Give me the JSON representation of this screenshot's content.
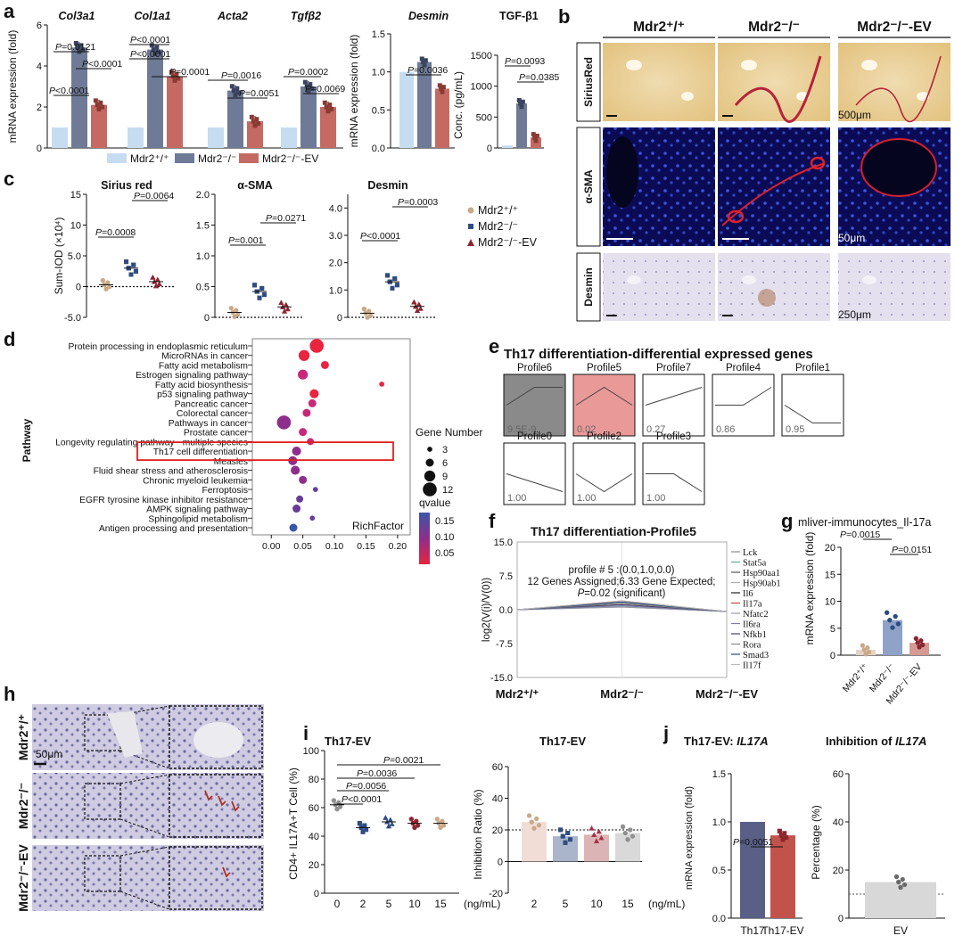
{
  "panel_letters": [
    "a",
    "b",
    "c",
    "d",
    "e",
    "f",
    "g",
    "h",
    "i",
    "j"
  ],
  "legends": {
    "a": [
      "Mdr2+/+",
      "Mdr2-/-",
      "Mdr2-/--EV"
    ],
    "c": [
      "Mdr2+/+",
      "Mdr2-/-",
      "Mdr2-/--EV"
    ]
  },
  "colors": {
    "wt": "#c6dcf1",
    "ko": "#6e7a96",
    "ev": "#c56a63",
    "c_wt": "#c9a988",
    "c_ko": "#2f4d82",
    "c_ev": "#8b2630",
    "q_high": "#e8243f",
    "q_mid": "#8e2e8c",
    "q_low": "#3a56a8",
    "profile_dark": "#8a8a8a",
    "profile_pink": "#e99a98",
    "highlight": "#e02020"
  },
  "panel_b": {
    "columns": [
      "Mdr2+/+",
      "Mdr2-/-",
      "Mdr2-/--EV"
    ],
    "rows": [
      "SiriusRed",
      "α-SMA",
      "Desmin"
    ],
    "scales": [
      "500μm",
      "50μm",
      "250μm"
    ]
  },
  "panel_e": {
    "title": "Th17 differentiation-differential expressed genes",
    "profiles": [
      {
        "name": "Profile6",
        "p": "9.5E-9",
        "trend": [
          0,
          1,
          1
        ]
      },
      {
        "name": "Profile5",
        "p": "0.02",
        "trend": [
          0,
          1,
          0
        ]
      },
      {
        "name": "Profile7",
        "p": "0.27",
        "trend": [
          0,
          0.5,
          1
        ]
      },
      {
        "name": "Profile4",
        "p": "0.86",
        "trend": [
          0,
          0,
          1
        ]
      },
      {
        "name": "Profile1",
        "p": "0.95",
        "trend": [
          0,
          -1,
          -1
        ]
      },
      {
        "name": "Profile0",
        "p": "1.00",
        "trend": [
          0,
          -0.5,
          -1
        ]
      },
      {
        "name": "Profile2",
        "p": "1.00",
        "trend": [
          0,
          -1,
          0
        ]
      },
      {
        "name": "Profile3",
        "p": "1.00",
        "trend": [
          0,
          0,
          -1
        ]
      }
    ]
  },
  "panel_f": {
    "genes": [
      "Lck",
      "Stat5a",
      "Hsp90aa1",
      "Hsp90ab1",
      "Il6",
      "Il17a",
      "Nfatc2",
      "Il6ra",
      "Nfkb1",
      "Rora",
      "Smad3",
      "Il17f"
    ]
  },
  "panel_h": {
    "rows": [
      "Mdr2+/+",
      "Mdr2-/-",
      "Mdr2-/--EV"
    ],
    "scale": "50μm"
  },
  "chart_data": [
    {
      "id": "a1",
      "type": "bar",
      "genes": [
        "Col3a1",
        "Col1a1",
        "Acta2",
        "Tgfβ2"
      ],
      "ylabel": "mRNA expression (fold)",
      "ylim": [
        0,
        6
      ],
      "yticks": [
        0,
        2,
        4,
        6
      ],
      "series": [
        {
          "name": "Mdr2+/+",
          "values": [
            1.0,
            1.0,
            1.0,
            1.0
          ]
        },
        {
          "name": "Mdr2-/-",
          "values": [
            4.9,
            4.8,
            2.8,
            3.0
          ]
        },
        {
          "name": "Mdr2-/--EV",
          "values": [
            2.1,
            3.5,
            1.3,
            2.0
          ]
        }
      ],
      "stats": [
        "P<0.0001",
        "P=0.0121",
        "P<0.0001",
        "P<0.0001",
        "P<0.0001",
        "P=0.0001",
        "P=0.0016",
        "P=0.0051",
        "P=0.0002",
        "P=0.0069"
      ]
    },
    {
      "id": "a2",
      "type": "bar",
      "title": "Desmin",
      "ylabel": "mRNA expression (fold)",
      "ylim": [
        0,
        1.5
      ],
      "yticks": [
        0.0,
        0.5,
        1.0,
        1.5
      ],
      "values": [
        1.0,
        1.13,
        0.78
      ],
      "stats": [
        "P=0.0036"
      ]
    },
    {
      "id": "a3",
      "type": "bar",
      "title": "TGF-β1",
      "ylabel": "Conc. (pg/mL)",
      "ylim": [
        0,
        1500
      ],
      "yticks": [
        0,
        500,
        1000,
        1500
      ],
      "values": [
        40,
        720,
        170
      ],
      "stats": [
        "P=0.0093",
        "P=0.0385"
      ]
    },
    {
      "id": "c1",
      "type": "scatter",
      "title": "Sirius red",
      "ylabel": "Sum-IOD (×10⁴)",
      "ylim": [
        -5,
        15
      ],
      "yticks": [
        "-5.0",
        "0",
        "5.0",
        "10",
        "15"
      ],
      "means": [
        0.3,
        3.0,
        0.8
      ],
      "stats": [
        "P=0.0008",
        "P=0.0064"
      ]
    },
    {
      "id": "c2",
      "type": "scatter",
      "title": "α-SMA",
      "ylim": [
        0,
        2
      ],
      "yticks": [
        "0",
        "0.5",
        "1.0",
        "1.5",
        "2.0"
      ],
      "means": [
        0.08,
        0.42,
        0.17
      ],
      "stats": [
        "P=0.001",
        "P=0.0271"
      ]
    },
    {
      "id": "c3",
      "type": "scatter",
      "title": "Desmin",
      "ylim": [
        0,
        5
      ],
      "yticks": [
        "0",
        "1.0",
        "2.0",
        "3.0",
        "4.0"
      ],
      "means": [
        0.15,
        1.3,
        0.4
      ],
      "stats": [
        "P<0.0001",
        "P=0.0003"
      ]
    },
    {
      "id": "d",
      "type": "scatter",
      "ylabel": "Pathway",
      "xlabel": "RichFactor",
      "xlim": [
        -0.03,
        0.22
      ],
      "xticks": [
        "0.00",
        "0.05",
        "0.10",
        "0.15",
        "0.20"
      ],
      "pathways": [
        {
          "name": "Protein processing in endoplasmic reticulum",
          "x": 0.072,
          "size": 12,
          "q": 0.04
        },
        {
          "name": "MicroRNAs in cancer",
          "x": 0.052,
          "size": 9,
          "q": 0.06
        },
        {
          "name": "Fatty acid metabolism",
          "x": 0.085,
          "size": 6,
          "q": 0.05
        },
        {
          "name": "Estrogen signaling pathway",
          "x": 0.05,
          "size": 8,
          "q": 0.07
        },
        {
          "name": "Fatty acid biosynthesis",
          "x": 0.175,
          "size": 3,
          "q": 0.05
        },
        {
          "name": "p53 signaling pathway",
          "x": 0.068,
          "size": 7,
          "q": 0.06
        },
        {
          "name": "Pancreatic cancer",
          "x": 0.065,
          "size": 6,
          "q": 0.07
        },
        {
          "name": "Colorectal cancer",
          "x": 0.056,
          "size": 6,
          "q": 0.07
        },
        {
          "name": "Pathways in cancer",
          "x": 0.02,
          "size": 12,
          "q": 0.09
        },
        {
          "name": "Prostate cancer",
          "x": 0.05,
          "size": 6,
          "q": 0.08
        },
        {
          "name": "Longevity regulating pathway - multiple species",
          "x": 0.062,
          "size": 5,
          "q": 0.08
        },
        {
          "name": "Th17 cell differentiation",
          "x": 0.04,
          "size": 7,
          "q": 0.09
        },
        {
          "name": "Measles",
          "x": 0.034,
          "size": 7,
          "q": 0.1
        },
        {
          "name": "Fluid shear stress and atherosclerosis",
          "x": 0.038,
          "size": 7,
          "q": 0.1
        },
        {
          "name": "Chronic myeloid leukemia",
          "x": 0.05,
          "size": 6,
          "q": 0.1
        },
        {
          "name": "Ferroptosis",
          "x": 0.07,
          "size": 3,
          "q": 0.12
        },
        {
          "name": "EGFR tyrosine kinase inhibitor resistance",
          "x": 0.045,
          "size": 5,
          "q": 0.11
        },
        {
          "name": "AMPK signaling pathway",
          "x": 0.04,
          "size": 6,
          "q": 0.12
        },
        {
          "name": "Sphingolipid metabolism",
          "x": 0.065,
          "size": 3,
          "q": 0.13
        },
        {
          "name": "Antigen processing and presentation",
          "x": 0.035,
          "size": 6,
          "q": 0.17
        }
      ],
      "size_legend_title": "Gene Number",
      "size_legend": [
        3,
        6,
        9,
        12
      ],
      "color_legend_title": "qvalue",
      "color_legend": [
        "0.15",
        "0.10",
        "0.05"
      ],
      "highlight": "Th17 cell differentiation"
    },
    {
      "id": "f",
      "type": "line",
      "title": "Th17 differentiation-Profile5",
      "ylabel": "log2(V(i)/V(0))",
      "ylim": [
        -15,
        15
      ],
      "yticks": [
        "-15.0",
        "-7.5",
        "0.0",
        "7.5",
        "15.0"
      ],
      "categories": [
        "Mdr2+/+",
        "Mdr2-/-",
        "Mdr2-/--EV"
      ],
      "annotation": [
        "profile # 5 :(0.0,1.0,0.0)",
        "12 Genes Assigned;6.33 Gene Expected;",
        "P=0.02 (significant)"
      ]
    },
    {
      "id": "g",
      "type": "bar",
      "title": "mliver-immunocytes_Il-17a",
      "ylabel": "mRNA expression (fold)",
      "ylim": [
        0,
        20
      ],
      "yticks": [
        0,
        5,
        10,
        15,
        20
      ],
      "categories": [
        "Mdr2+/+",
        "Mdr2-/-",
        "Mdr2-/--EV"
      ],
      "values": [
        1.0,
        6.5,
        2.3
      ],
      "stats": [
        "P=0.0015",
        "P=0.0151"
      ]
    },
    {
      "id": "i1",
      "type": "scatter",
      "title": "Th17-EV",
      "ylabel": "CD4+ IL17A+T Cell (%)",
      "xlabel": "(ng/mL)",
      "ylim": [
        0,
        100
      ],
      "yticks": [
        0,
        20,
        40,
        60,
        80,
        100
      ],
      "categories": [
        "0",
        "2",
        "5",
        "10",
        "15"
      ],
      "means": [
        62,
        46,
        50,
        49,
        49
      ],
      "stats": [
        "P=0.0021",
        "P=0.0036",
        "P=0.0056",
        "P<0.0001"
      ]
    },
    {
      "id": "i2",
      "type": "bar",
      "title": "Th17-EV",
      "ylabel": "Inhibition Ratio (%)",
      "xlabel": "(ng/mL)",
      "ylim": [
        -20,
        60
      ],
      "yticks": [
        -20,
        0,
        20,
        40,
        60
      ],
      "categories": [
        "2",
        "5",
        "10",
        "15"
      ],
      "values": [
        25,
        16,
        17,
        18
      ]
    },
    {
      "id": "j1",
      "type": "bar",
      "title": "Th17-EV: IL17A",
      "ylabel": "mRNA expression (fold)",
      "ylim": [
        0,
        1.5
      ],
      "yticks": [
        "0.0",
        "0.5",
        "1.0",
        "1.5"
      ],
      "categories": [
        "Th17",
        "Th17-EV"
      ],
      "values": [
        1.0,
        0.86
      ],
      "stats": [
        "P=0.0051"
      ]
    },
    {
      "id": "j2",
      "type": "bar",
      "title": "Inhibition of IL17A",
      "ylabel": "Percentage (%)",
      "ylim": [
        0,
        60
      ],
      "yticks": [
        0,
        20,
        40,
        60
      ],
      "categories": [
        "EV"
      ],
      "values": [
        15
      ]
    }
  ]
}
